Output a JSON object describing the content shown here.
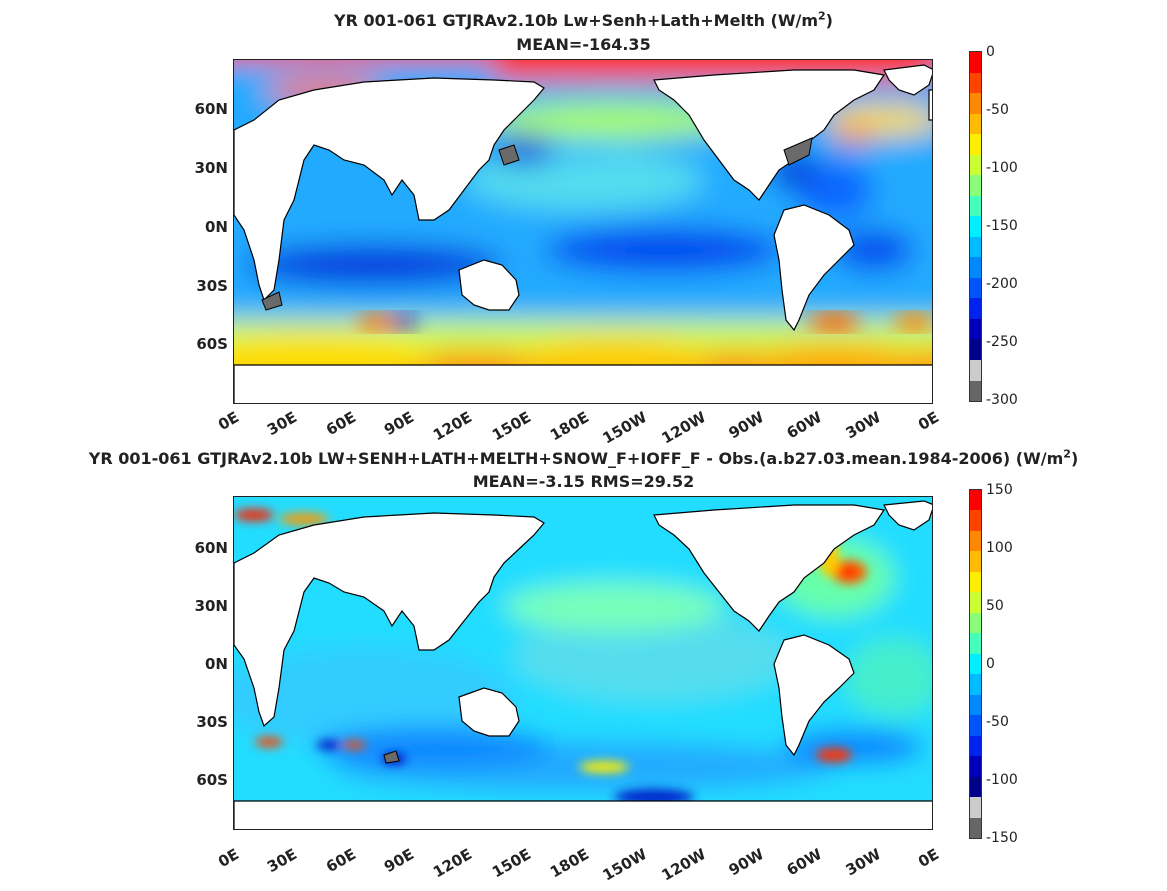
{
  "panel1": {
    "title_line1_prefix": "YR 001-061 GTJRAv2.10b Lw+Senh+Lath+Melth (W/m",
    "title_line1_sup": "2",
    "title_line1_suffix": ")",
    "title_line2": "MEAN=-164.35",
    "colorbar": {
      "ticks": [
        "0",
        "-50",
        "-100",
        "-150",
        "-200",
        "-250",
        "-300"
      ],
      "colors": [
        "#ff0000",
        "#ff4400",
        "#ff8800",
        "#ffbb00",
        "#ffee00",
        "#ccff33",
        "#88ff77",
        "#44ffbb",
        "#00eeff",
        "#00bbff",
        "#0088ff",
        "#0055ff",
        "#0022ee",
        "#0000bb",
        "#000088",
        "#cccccc",
        "#666666"
      ]
    }
  },
  "panel2": {
    "title_line1_prefix": "YR 001-061 GTJRAv2.10b LW+SENH+LATH+MELTH+SNOW_F+IOFF_F - Obs.(a.b27.03.mean.1984-2006) (W/m",
    "title_line1_sup": "2",
    "title_line1_suffix": ")",
    "title_line2": "MEAN=-3.15 RMS=29.52",
    "colorbar": {
      "ticks": [
        "150",
        "100",
        "50",
        "0",
        "-50",
        "-100",
        "-150"
      ],
      "colors": [
        "#ff0000",
        "#ff4400",
        "#ff8800",
        "#ffbb00",
        "#ffee00",
        "#ccff33",
        "#88ff77",
        "#44ffbb",
        "#00eeff",
        "#00bbff",
        "#0088ff",
        "#0055ff",
        "#0022ee",
        "#0000bb",
        "#000088",
        "#cccccc",
        "#666666"
      ]
    }
  },
  "lat_labels": [
    "60N",
    "30N",
    "0N",
    "30S",
    "60S"
  ],
  "lon_labels": [
    "0E",
    "30E",
    "60E",
    "90E",
    "120E",
    "150E",
    "180E",
    "150W",
    "120W",
    "90W",
    "60W",
    "30W",
    "0E"
  ],
  "colors": {
    "land": "#ffffff",
    "coast": "#000000",
    "land_ice": "#6a6a6a"
  }
}
